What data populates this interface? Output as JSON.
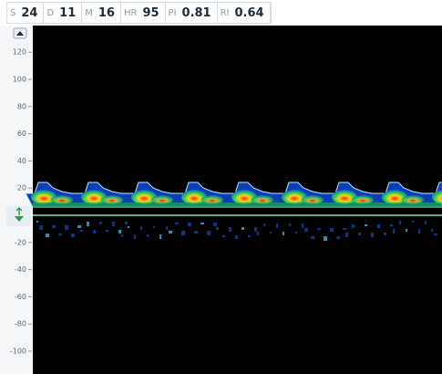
{
  "header": {
    "metrics": [
      {
        "label": "S",
        "value": "24"
      },
      {
        "label": "D",
        "value": "11"
      },
      {
        "label": "M",
        "value": "16"
      },
      {
        "label": "HR",
        "value": "95"
      },
      {
        "label": "PI",
        "value": "0.81"
      },
      {
        "label": "RI",
        "value": "0.64"
      }
    ]
  },
  "scale": {
    "ticks": [
      120,
      100,
      80,
      60,
      40,
      20,
      -20,
      -40,
      -60,
      -80,
      -100
    ]
  }
}
